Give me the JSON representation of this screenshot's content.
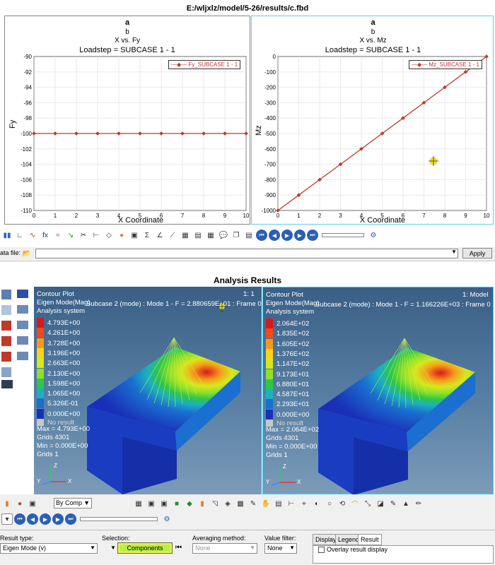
{
  "window": {
    "title": "E:/wljxlz/model/5-26/results/c.fbd"
  },
  "plots": [
    {
      "title_a": "a",
      "title_b": "b",
      "subtitle": "X vs. Fy",
      "loadstep": "Loadstep = SUBCASE 1 - 1",
      "xlabel": "X Coordinate",
      "ylabel": "Fy",
      "legend": "Fy_SUBCASE 1 - 1",
      "yticks": [
        "-90",
        "-92",
        "-94",
        "-96",
        "-98",
        "-100",
        "-102",
        "-104",
        "-106",
        "-108",
        "-110"
      ],
      "xticks": [
        "0",
        "1",
        "2",
        "3",
        "4",
        "5",
        "6",
        "7",
        "8",
        "9",
        "10"
      ]
    },
    {
      "title_a": "a",
      "title_b": "b",
      "subtitle": "X vs. Mz",
      "loadstep": "Loadstep = SUBCASE 1 - 1",
      "xlabel": "X Coordinate",
      "ylabel": "Mz",
      "legend": "Mz_SUBCASE 1 - 1",
      "yticks": [
        "0",
        "-100",
        "-200",
        "-300",
        "-400",
        "-500",
        "-600",
        "-700",
        "-800",
        "-900",
        "-1000"
      ],
      "xticks": [
        "0",
        "1",
        "2",
        "3",
        "4",
        "5",
        "6",
        "7",
        "8",
        "9",
        "10"
      ]
    }
  ],
  "chart_data": [
    {
      "type": "line",
      "title": "a",
      "subtitle": "X vs. Fy",
      "xlabel": "X Coordinate",
      "ylabel": "Fy",
      "xlim": [
        0,
        10
      ],
      "ylim": [
        -110,
        -90
      ],
      "grid": true,
      "legend_position": "top-right",
      "series": [
        {
          "name": "Fy_SUBCASE 1 - 1",
          "x": [
            0,
            1,
            2,
            3,
            4,
            5,
            6,
            7,
            8,
            9,
            10
          ],
          "values": [
            -100,
            -100,
            -100,
            -100,
            -100,
            -100,
            -100,
            -100,
            -100,
            -100,
            -100
          ]
        }
      ]
    },
    {
      "type": "line",
      "title": "a",
      "subtitle": "X vs. Mz",
      "xlabel": "X Coordinate",
      "ylabel": "Mz",
      "xlim": [
        0,
        10
      ],
      "ylim": [
        -1000,
        0
      ],
      "grid": true,
      "legend_position": "top-right",
      "series": [
        {
          "name": "Mz_SUBCASE 1 - 1",
          "x": [
            0,
            1,
            2,
            3,
            4,
            5,
            6,
            7,
            8,
            9,
            10
          ],
          "values": [
            -1000,
            -900,
            -800,
            -700,
            -600,
            -500,
            -400,
            -300,
            -200,
            -100,
            0
          ]
        }
      ]
    }
  ],
  "datafile": {
    "label": "ata file:",
    "apply_label": "Apply"
  },
  "analysis": {
    "header": "Analysis Results"
  },
  "contours": [
    {
      "title": "Contour Plot",
      "line2": "Eigen Mode(Mag)",
      "line3": "Analysis system",
      "index": "1: 1",
      "subcase": "Subcase 2 (mode) : Mode 1 - F = 2.880659E+01 : Frame 0",
      "levels": [
        "4.793E+00",
        "4.261E+00",
        "3.728E+00",
        "3.196E+00",
        "2.663E+00",
        "2.130E+00",
        "1.598E+00",
        "1.065E+00",
        "5.326E-01",
        "0.000E+00"
      ],
      "no_result": "No result",
      "max": "Max = 4.793E+00",
      "max_grids": "Grids 4301",
      "min": "Min = 0.000E+00",
      "min_grids": "Grids 1"
    },
    {
      "title": "Contour Plot",
      "line2": "Eigen Mode(Mag)",
      "line3": "Analysis system",
      "index": "1: Model",
      "subcase": "Subcase 2 (mode) : Mode 1 - F = 1.166226E+03 : Frame 0",
      "levels": [
        "2.064E+02",
        "1.835E+02",
        "1.605E+02",
        "1.376E+02",
        "1.147E+02",
        "9.173E+01",
        "6.880E+01",
        "4.587E+01",
        "2.293E+01",
        "0.000E+00"
      ],
      "no_result": "No result",
      "max": "Max = 2.064E+02",
      "max_grids": "Grids 4301",
      "min": "Min = 0.000E+00",
      "min_grids": "Grids 1"
    }
  ],
  "legend_colors": [
    "#d7191c",
    "#f04a1a",
    "#f79a1b",
    "#f7d31b",
    "#d6e81c",
    "#8fe02a",
    "#2fc64a",
    "#1bb0c0",
    "#1a6fd0",
    "#1a2fb8"
  ],
  "toolbar2": {
    "by_comp": "By Comp"
  },
  "bottom": {
    "result_type_label": "Result type:",
    "result_type_value": "Eigen Mode (v)",
    "selection_label": "Selection:",
    "components_label": "Components",
    "averaging_label": "Averaging method:",
    "averaging_value": "None",
    "value_filter_label": "Value filter:",
    "value_filter_value": "None",
    "tabs": [
      "Display",
      "Legend",
      "Result"
    ],
    "overlay_label": "Overlay result display"
  }
}
